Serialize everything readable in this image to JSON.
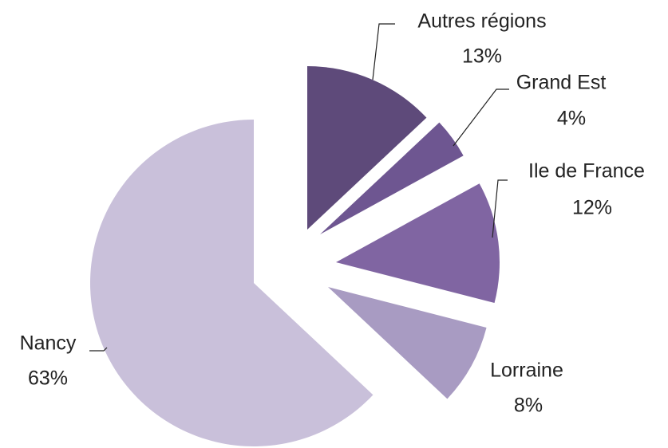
{
  "chart_data": {
    "type": "pie",
    "categories": [
      "Autres régions",
      "Grand Est",
      "Ile de France",
      "Lorraine",
      "Nancy"
    ],
    "values": [
      13,
      4,
      12,
      8,
      63
    ],
    "value_labels": [
      "13%",
      "4%",
      "12%",
      "8%",
      "63%"
    ],
    "colors": [
      "#5e4a7a",
      "#6e5691",
      "#8065a2",
      "#a89bc2",
      "#c9c0da"
    ]
  }
}
